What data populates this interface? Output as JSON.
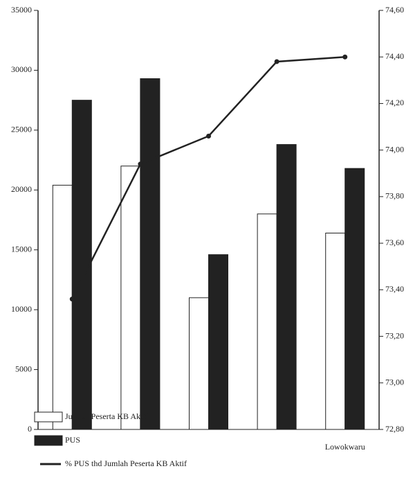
{
  "chart_data": {
    "type": "bar-line",
    "categories": [
      null,
      null,
      null,
      null,
      "Lowokwaru"
    ],
    "series": [
      {
        "name": "Jumlah Peserta KB Aktif",
        "color": "#ffffff",
        "values": [
          20400,
          22000,
          11000,
          18000,
          16400
        ]
      },
      {
        "name": "PUS",
        "color": "#222222",
        "values": [
          27500,
          29300,
          14600,
          23800,
          21800
        ]
      },
      {
        "name": "% PUS thd Jumlah Peserta KB Aktif",
        "color": "#222222",
        "axis": "y2",
        "values": [
          73.36,
          73.94,
          74.06,
          74.38,
          74.4
        ]
      }
    ],
    "ylim": [
      0,
      35000
    ],
    "yticks": [
      0,
      5000,
      10000,
      15000,
      20000,
      25000,
      30000,
      35000
    ],
    "y2lim": [
      72.8,
      74.6
    ],
    "y2ticks": [
      {
        "value": 72.8,
        "label": "72,80"
      },
      {
        "value": 73.0,
        "label": "73,00"
      },
      {
        "value": 73.2,
        "label": "73,20"
      },
      {
        "value": 73.4,
        "label": "73,40"
      },
      {
        "value": 73.6,
        "label": "73,60"
      },
      {
        "value": 73.8,
        "label": "73,80"
      },
      {
        "value": 74.0,
        "label": "74,00"
      },
      {
        "value": 74.2,
        "label": "74,20"
      },
      {
        "value": 74.4,
        "label": "74,40"
      },
      {
        "value": 74.6,
        "label": "74,60"
      }
    ]
  }
}
